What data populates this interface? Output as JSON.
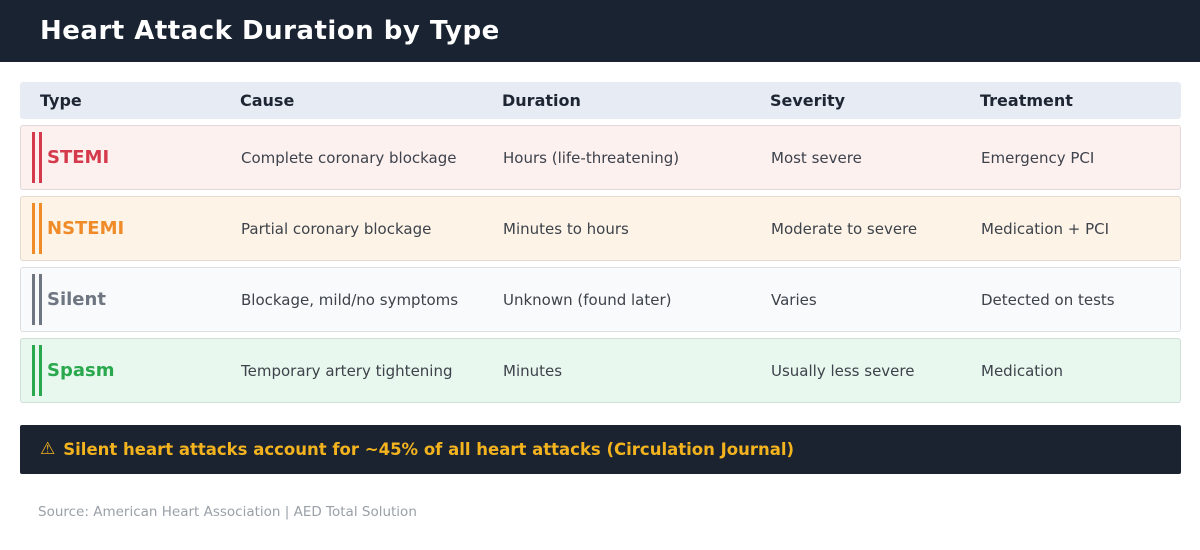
{
  "header": {
    "title": "Heart Attack Duration by Type"
  },
  "chart_data": {
    "type": "table",
    "title": "Heart Attack Duration by Type",
    "columns": [
      "Type",
      "Cause",
      "Duration",
      "Severity",
      "Treatment"
    ],
    "rows": [
      {
        "type": "STEMI",
        "cause": "Complete coronary blockage",
        "duration": "Hours (life-threatening)",
        "severity": "Most severe",
        "treatment": "Emergency PCI",
        "accent": "#d53a4c",
        "bg": "#fdf1f0"
      },
      {
        "type": "NSTEMI",
        "cause": "Partial coronary blockage",
        "duration": "Minutes to hours",
        "severity": "Moderate to severe",
        "treatment": "Medication + PCI",
        "accent": "#ef8b28",
        "bg": "#fdf4e7"
      },
      {
        "type": "Silent",
        "cause": "Blockage, mild/no symptoms",
        "duration": "Unknown (found later)",
        "severity": "Varies",
        "treatment": "Detected on tests",
        "accent": "#6e7681",
        "bg": "#f8fafb"
      },
      {
        "type": "Spasm",
        "cause": "Temporary artery tightening",
        "duration": "Minutes",
        "severity": "Usually less severe",
        "treatment": "Medication",
        "accent": "#2aa84e",
        "bg": "#e9f8ee"
      }
    ]
  },
  "banner": {
    "icon": "⚠",
    "text": "Silent heart attacks account for ~45% of all heart attacks (Circulation Journal)"
  },
  "footer": {
    "source": "Source: American Heart Association | AED Total Solution"
  },
  "colors": {
    "topbar_bg": "#1a2332",
    "table_header_bg": "#e7ebf4",
    "banner_bg": "#1b2330",
    "banner_text": "#f3b31e",
    "footer_text": "#9aa0a8"
  }
}
